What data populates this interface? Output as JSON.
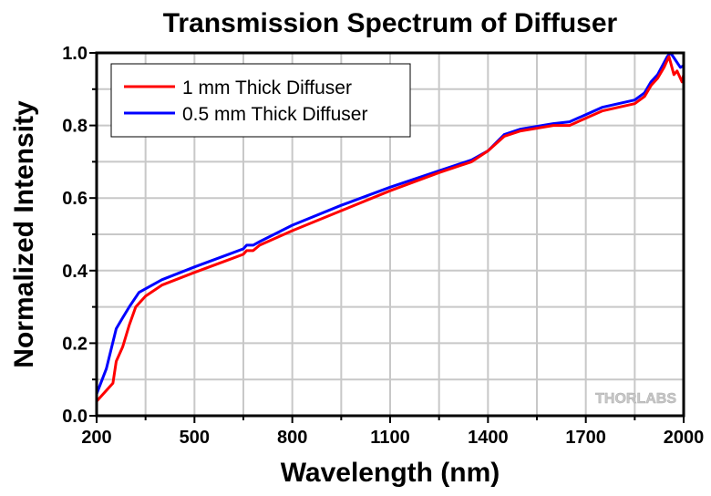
{
  "chart_data": {
    "type": "line",
    "title": "Transmission Spectrum of Diffuser",
    "xlabel": "Wavelength (nm)",
    "ylabel": "Normalized Intensity",
    "xlim": [
      200,
      2000
    ],
    "ylim": [
      0.0,
      1.0
    ],
    "xticks": [
      200,
      500,
      800,
      1100,
      1400,
      1700,
      2000
    ],
    "xtick_labels": [
      "200",
      "500",
      "800",
      "1100",
      "1400",
      "1700",
      "2000"
    ],
    "yticks": [
      0.0,
      0.2,
      0.4,
      0.6,
      0.8,
      1.0
    ],
    "ytick_labels": [
      "0.0",
      "0.2",
      "0.4",
      "0.6",
      "0.8",
      "1.0"
    ],
    "grid": true,
    "legend_position": "top-left",
    "watermark": "THORLABS",
    "series": [
      {
        "name": "1 mm Thick Diffuser",
        "color": "#ff0000",
        "x": [
          200,
          220,
          250,
          260,
          280,
          300,
          320,
          350,
          400,
          500,
          650,
          660,
          680,
          700,
          800,
          950,
          1100,
          1250,
          1350,
          1400,
          1450,
          1500,
          1600,
          1650,
          1700,
          1750,
          1800,
          1850,
          1880,
          1900,
          1920,
          1940,
          1955,
          1970,
          1980,
          1995,
          2000
        ],
        "y": [
          0.04,
          0.06,
          0.09,
          0.15,
          0.19,
          0.25,
          0.3,
          0.33,
          0.36,
          0.395,
          0.445,
          0.455,
          0.455,
          0.47,
          0.51,
          0.565,
          0.62,
          0.67,
          0.7,
          0.73,
          0.77,
          0.785,
          0.8,
          0.8,
          0.82,
          0.84,
          0.85,
          0.86,
          0.88,
          0.91,
          0.93,
          0.96,
          0.99,
          0.94,
          0.95,
          0.92,
          0.94
        ]
      },
      {
        "name": "0.5 mm Thick Diffuser",
        "color": "#0000ff",
        "x": [
          200,
          230,
          260,
          280,
          300,
          330,
          400,
          500,
          650,
          660,
          680,
          700,
          800,
          950,
          1100,
          1250,
          1350,
          1400,
          1450,
          1500,
          1600,
          1650,
          1700,
          1750,
          1800,
          1850,
          1880,
          1900,
          1920,
          1950,
          1960,
          1975,
          1990,
          2000
        ],
        "y": [
          0.06,
          0.13,
          0.24,
          0.27,
          0.3,
          0.34,
          0.375,
          0.41,
          0.46,
          0.47,
          0.47,
          0.48,
          0.525,
          0.58,
          0.63,
          0.675,
          0.705,
          0.73,
          0.775,
          0.79,
          0.805,
          0.81,
          0.83,
          0.85,
          0.86,
          0.87,
          0.89,
          0.92,
          0.94,
          0.99,
          1.0,
          0.98,
          0.96,
          0.965
        ]
      }
    ]
  }
}
